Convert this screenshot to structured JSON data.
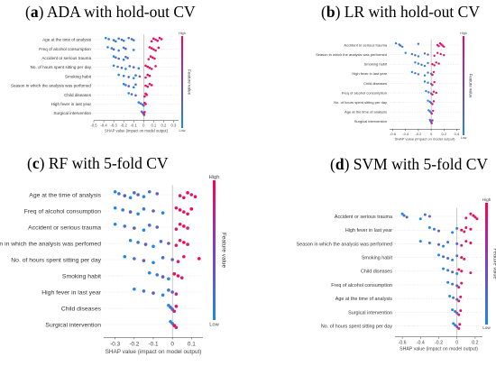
{
  "panels": [
    {
      "letter": "a",
      "title_rest": "ADA with hold-out CV",
      "chart_data": {
        "type": "scatter",
        "xlabel": "SHAP value (impact on model output)",
        "colorbar_label": "Feature value",
        "colorbar_high": "High",
        "colorbar_low": "Low",
        "xticks": [
          -0.5,
          -0.4,
          -0.3,
          -0.2,
          -0.1,
          0.0,
          0.1,
          0.2,
          0.3
        ],
        "xlim": [
          -0.5,
          0.35
        ],
        "features": [
          {
            "name": "Age at the time of analysis",
            "values": [
              -0.38,
              -0.35,
              -0.3,
              -0.28,
              -0.25,
              -0.22,
              -0.2,
              -0.15,
              -0.12,
              -0.1,
              0.08,
              0.1,
              0.12,
              0.14,
              0.16,
              0.18
            ]
          },
          {
            "name": "Freq of alcohol consumption",
            "values": [
              -0.36,
              -0.32,
              -0.3,
              -0.25,
              -0.2,
              -0.18,
              -0.1,
              0.06,
              0.08,
              0.1,
              0.12,
              0.15
            ]
          },
          {
            "name": "Accident or serious trauma",
            "values": [
              -0.3,
              -0.28,
              -0.25,
              -0.2,
              -0.18,
              -0.16,
              0.05,
              0.07,
              0.09,
              0.11
            ]
          },
          {
            "name": "No. of hours spent sitting per day",
            "values": [
              -0.3,
              -0.26,
              -0.22,
              -0.18,
              -0.14,
              -0.1,
              -0.05,
              0.02,
              0.04,
              0.06,
              0.08,
              0.12
            ]
          },
          {
            "name": "Smoking habit",
            "values": [
              -0.25,
              -0.2,
              -0.15,
              -0.1,
              -0.08,
              -0.04,
              0.02,
              0.04,
              0.06
            ]
          },
          {
            "name": "Season in which the analysis was perfomed",
            "values": [
              -0.2,
              -0.18,
              -0.15,
              -0.1,
              -0.08,
              0.02,
              0.04,
              0.06,
              0.08
            ]
          },
          {
            "name": "Child diseases",
            "values": [
              -0.15,
              -0.12,
              -0.08,
              0.01,
              0.02,
              0.03
            ]
          },
          {
            "name": "High fever in last year",
            "values": [
              -0.05,
              -0.03,
              -0.01,
              0.0,
              0.01,
              0.02
            ]
          },
          {
            "name": "Surgical intervention",
            "values": [
              -0.02,
              -0.01,
              0.0,
              0.005,
              0.01
            ]
          }
        ]
      }
    },
    {
      "letter": "b",
      "title_rest": "LR with hold-out CV",
      "chart_data": {
        "type": "scatter",
        "xlabel": "SHAP value (impact on model output)",
        "colorbar_label": "Feature value",
        "colorbar_high": "High",
        "colorbar_low": "Low",
        "xticks": [
          -0.6,
          -0.4,
          -0.2,
          0.0,
          0.2,
          0.4
        ],
        "xlim": [
          -0.65,
          0.45
        ],
        "features": [
          {
            "name": "Accident or serious trauma",
            "values": [
              -0.55,
              -0.5,
              -0.48,
              -0.45,
              -0.2,
              0.1,
              0.12,
              0.14,
              0.16,
              0.18,
              0.2
            ]
          },
          {
            "name": "Season in which the analysis was performed",
            "values": [
              -0.4,
              -0.3,
              -0.25,
              -0.2,
              -0.1,
              -0.05,
              0.05,
              0.1,
              0.15,
              0.2
            ]
          },
          {
            "name": "Smoking habit",
            "values": [
              -0.25,
              -0.2,
              -0.15,
              -0.1,
              -0.05,
              0.02,
              0.05,
              0.08,
              0.12
            ]
          },
          {
            "name": "High fever in last year",
            "values": [
              -0.3,
              -0.25,
              -0.2,
              -0.1,
              -0.05,
              0.0,
              0.02,
              0.04
            ]
          },
          {
            "name": "Child diseases",
            "values": [
              -0.1,
              -0.05,
              0.0,
              0.02,
              0.05
            ]
          },
          {
            "name": "Freq of alcohol consumption",
            "values": [
              -0.08,
              -0.04,
              0.0,
              0.02,
              0.04,
              0.08
            ]
          },
          {
            "name": "No. of hours spent sitting per day",
            "values": [
              -0.05,
              -0.02,
              0.0,
              0.02,
              0.04
            ]
          },
          {
            "name": "Age at the time of analysis",
            "values": [
              -0.04,
              -0.02,
              0.0,
              0.01,
              0.03
            ]
          },
          {
            "name": "Surgical intervention",
            "values": [
              -0.02,
              -0.01,
              0.0,
              0.01,
              0.02
            ]
          }
        ]
      }
    },
    {
      "letter": "c",
      "title_rest": "RF with 5-fold CV",
      "chart_data": {
        "type": "scatter",
        "xlabel": "SHAP value (impact on model output)",
        "colorbar_label": "Feature value",
        "colorbar_high": "High",
        "colorbar_low": "Low",
        "xticks": [
          -0.3,
          -0.2,
          -0.1,
          0.0,
          0.1
        ],
        "xlim": [
          -0.36,
          0.16
        ],
        "features": [
          {
            "name": "Age at the time of analysis",
            "values": [
              -0.3,
              -0.28,
              -0.25,
              -0.22,
              -0.2,
              -0.18,
              -0.15,
              -0.12,
              -0.08,
              0.04,
              0.06,
              0.08,
              0.1,
              0.12
            ]
          },
          {
            "name": "Freq of alcohol consumption",
            "values": [
              -0.3,
              -0.26,
              -0.22,
              -0.18,
              -0.15,
              -0.1,
              -0.05,
              0.02,
              0.04,
              0.06,
              0.08,
              0.1
            ]
          },
          {
            "name": "Accident or serious trauma",
            "values": [
              -0.3,
              -0.25,
              -0.2,
              -0.15,
              -0.12,
              -0.08,
              0.02,
              0.04,
              0.06,
              0.08
            ]
          },
          {
            "name": "Season in which the analysis was perfomed",
            "values": [
              -0.22,
              -0.18,
              -0.14,
              -0.1,
              -0.06,
              -0.02,
              0.02,
              0.04,
              0.06,
              0.08
            ]
          },
          {
            "name": "No. of hours spent sitting per day",
            "values": [
              -0.25,
              -0.2,
              -0.15,
              -0.1,
              -0.05,
              0.0,
              0.03,
              0.06,
              0.14
            ]
          },
          {
            "name": "Smoking habit",
            "values": [
              -0.12,
              -0.08,
              -0.05,
              -0.02,
              0.01,
              0.03,
              0.05
            ]
          },
          {
            "name": "High fever in last year",
            "values": [
              -0.2,
              -0.15,
              -0.1,
              -0.05,
              -0.02,
              0.0,
              0.02
            ]
          },
          {
            "name": "Child diseases",
            "values": [
              -0.02,
              -0.01,
              0.0,
              0.01,
              0.02
            ]
          },
          {
            "name": "Surgical intervention",
            "values": [
              -0.01,
              0.0,
              0.01,
              0.02
            ]
          }
        ]
      }
    },
    {
      "letter": "d",
      "title_rest": "SVM with 5-fold CV",
      "chart_data": {
        "type": "scatter",
        "xlabel": "SHAP value (impact on model output)",
        "colorbar_label": "Feature value",
        "colorbar_high": "High",
        "colorbar_low": "Low",
        "xticks": [
          -0.6,
          -0.4,
          -0.2,
          0.0,
          0.2
        ],
        "xlim": [
          -0.68,
          0.28
        ],
        "features": [
          {
            "name": "Accident or serious trauma",
            "values": [
              -0.6,
              -0.58,
              -0.55,
              -0.4,
              -0.35,
              -0.3,
              0.1,
              0.15,
              0.18,
              0.2,
              0.22
            ]
          },
          {
            "name": "High fever in last year",
            "values": [
              -0.3,
              -0.25,
              -0.2,
              -0.05,
              0.0,
              0.05,
              0.08,
              0.1,
              0.15
            ]
          },
          {
            "name": "Season in which the analysis was performed",
            "values": [
              -0.4,
              -0.3,
              -0.2,
              -0.15,
              -0.1,
              0.0,
              0.05,
              0.1,
              0.15
            ]
          },
          {
            "name": "Smoking habit",
            "values": [
              -0.2,
              -0.15,
              -0.1,
              -0.05,
              0.0,
              0.05,
              0.08
            ]
          },
          {
            "name": "Child diseases",
            "values": [
              -0.15,
              -0.1,
              -0.05,
              0.0,
              0.02,
              0.05,
              0.15
            ]
          },
          {
            "name": "Freq of alcohol consumption",
            "values": [
              -0.1,
              -0.05,
              0.0,
              0.02,
              0.05
            ]
          },
          {
            "name": "Age at the time of analysis",
            "values": [
              -0.08,
              -0.04,
              0.0,
              0.02,
              0.04
            ]
          },
          {
            "name": "Surgical intervention",
            "values": [
              -0.05,
              -0.02,
              0.0,
              0.02,
              0.04
            ]
          },
          {
            "name": "No. of hours spent sitting per day",
            "values": [
              -0.04,
              -0.02,
              0.0,
              0.02,
              0.03
            ]
          }
        ]
      }
    }
  ]
}
